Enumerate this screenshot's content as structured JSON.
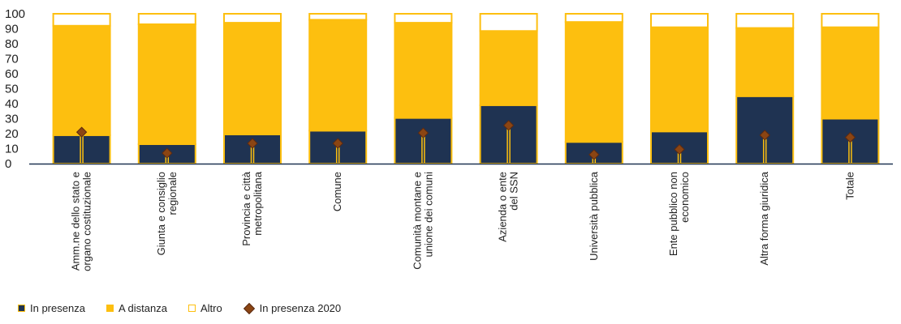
{
  "chart_data": {
    "type": "bar",
    "stacked": true,
    "categories": [
      [
        "Amm.ne dello stato e",
        "organo costituzionale"
      ],
      [
        "Giunta e consiglio",
        "regionale"
      ],
      [
        "Provincia e città",
        "metropolitana"
      ],
      [
        "Comune"
      ],
      [
        "Comunità montane e",
        "unione dei comuni"
      ],
      [
        "Azienda o ente",
        "del SSN"
      ],
      [
        "Università pubblica"
      ],
      [
        "Ente pubblico non",
        "economico"
      ],
      [
        "Altra forma giuridica"
      ],
      [
        "Totale"
      ]
    ],
    "series": [
      {
        "name": "In presenza",
        "color": "#1f3352",
        "values": [
          19,
          13,
          19.5,
          22,
          30.5,
          39,
          14.5,
          21.5,
          45,
          30
        ]
      },
      {
        "name": "A distanza",
        "color": "#fdbf0f",
        "values": [
          73,
          80,
          74.5,
          74,
          63.5,
          49.5,
          80,
          69.5,
          45.5,
          61
        ]
      },
      {
        "name": "Altro",
        "color": "#ffffff",
        "edge": "#fdbf0f",
        "values": [
          8,
          7,
          6,
          4,
          6,
          11.5,
          5.5,
          9,
          9.5,
          9
        ]
      }
    ],
    "markers": {
      "name": "In presenza 2020",
      "color": "#8b4513",
      "values": [
        21,
        7,
        13.5,
        13.5,
        20.5,
        25.5,
        6,
        9.5,
        19,
        17.5
      ]
    },
    "ylim": [
      0,
      100
    ],
    "yticks": [
      0,
      10,
      20,
      30,
      40,
      50,
      60,
      70,
      80,
      90,
      100
    ],
    "legend_position": "bottom-left"
  }
}
